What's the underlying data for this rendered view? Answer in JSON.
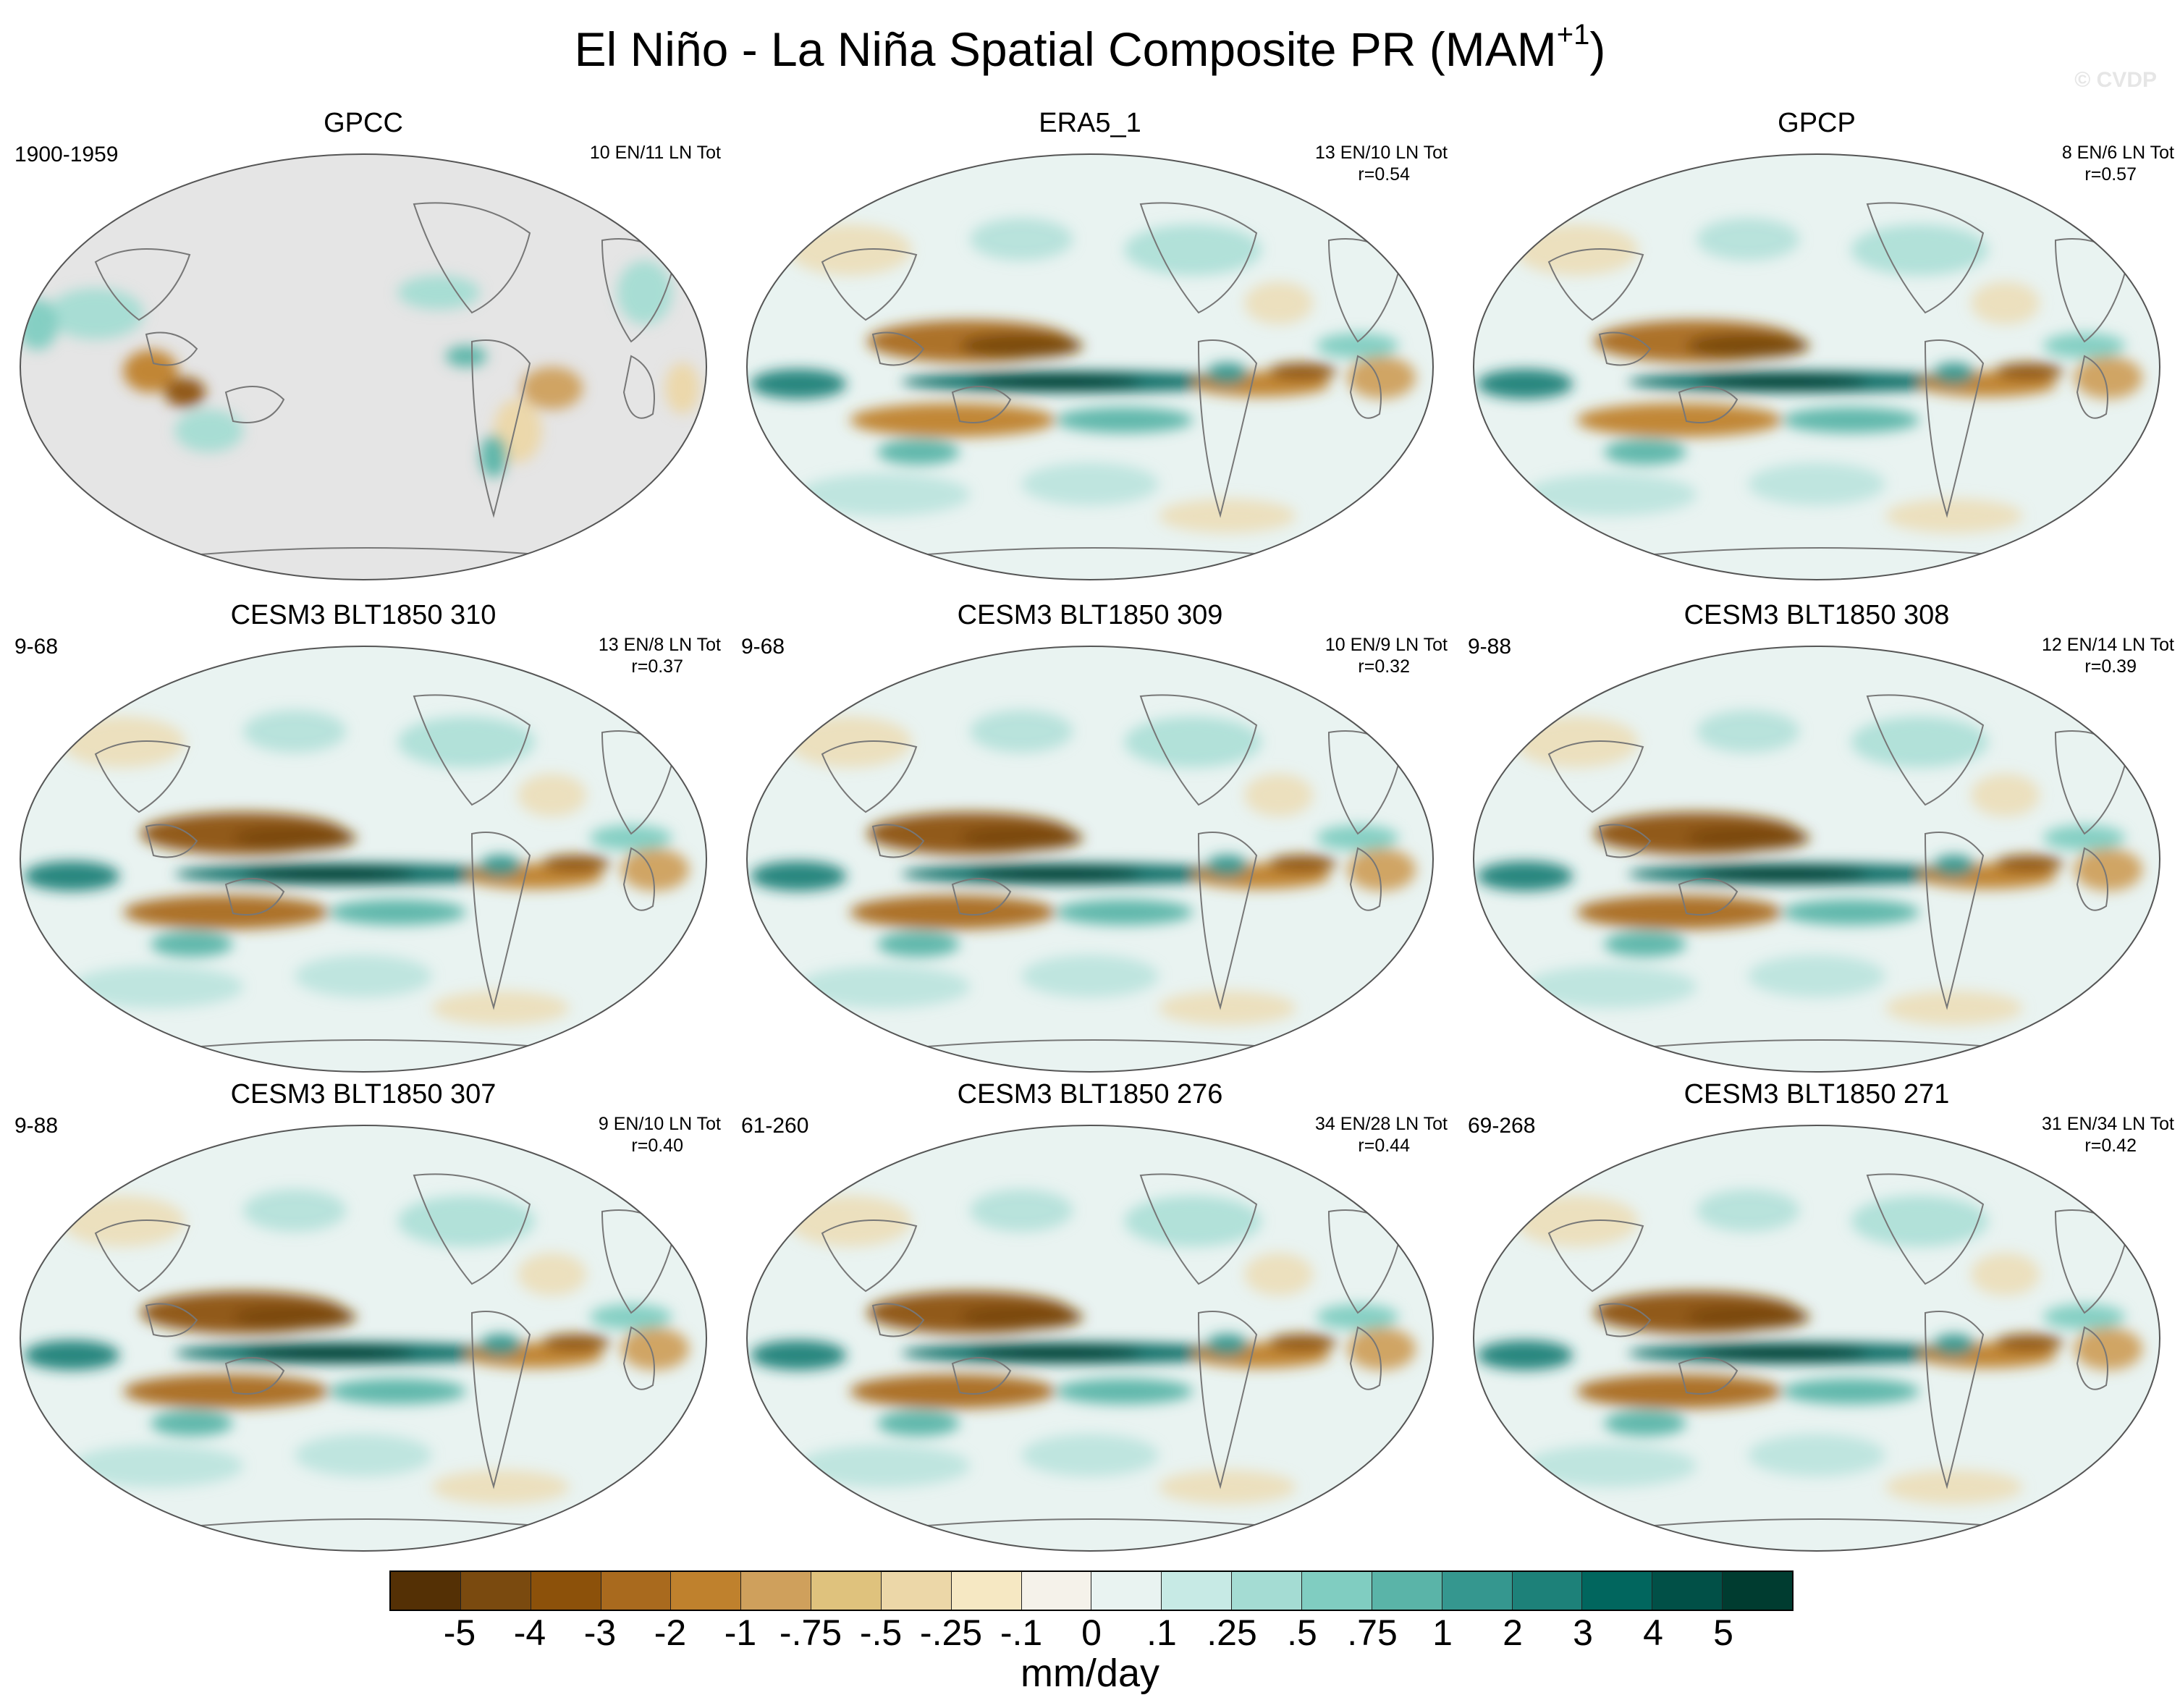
{
  "figure": {
    "title": "El Niño - La Niña Spatial Composite PR (MAM",
    "title_sup": "+1",
    "title_end": ")",
    "watermark": "© CVDP"
  },
  "panels": [
    {
      "title": "GPCC",
      "range": "1900-1959",
      "count": "10 EN/11 LN Tot",
      "corr": "",
      "style": "obs_gpcc"
    },
    {
      "title": "ERA5_1",
      "range": "",
      "count": "13 EN/10 LN Tot",
      "corr": "r=0.54",
      "style": "obs"
    },
    {
      "title": "GPCP",
      "range": "",
      "count": "8 EN/6 LN Tot",
      "corr": "r=0.57",
      "style": "obs"
    },
    {
      "title": "CESM3 BLT1850 310",
      "range": "9-68",
      "count": "13 EN/8 LN Tot",
      "corr": "r=0.37",
      "style": "model"
    },
    {
      "title": "CESM3 BLT1850 309",
      "range": "9-68",
      "count": "10 EN/9 LN Tot",
      "corr": "r=0.32",
      "style": "model"
    },
    {
      "title": "CESM3 BLT1850 308",
      "range": "9-88",
      "count": "12 EN/14 LN Tot",
      "corr": "r=0.39",
      "style": "model"
    },
    {
      "title": "CESM3 BLT1850 307",
      "range": "9-88",
      "count": "9 EN/10 LN Tot",
      "corr": "r=0.40",
      "style": "model"
    },
    {
      "title": "CESM3 BLT1850 276",
      "range": "61-260",
      "count": "34 EN/28 LN Tot",
      "corr": "r=0.44",
      "style": "model"
    },
    {
      "title": "CESM3 BLT1850 271",
      "range": "69-268",
      "count": "31 EN/34 LN Tot",
      "corr": "r=0.42",
      "style": "model"
    }
  ],
  "colorbar": {
    "unit": "mm/day",
    "labels": [
      "-5",
      "-4",
      "-3",
      "-2",
      "-1",
      "-.75",
      "-.5",
      "-.25",
      "-.1",
      "0",
      ".1",
      ".25",
      ".5",
      ".75",
      "1",
      "2",
      "3",
      "4",
      "5"
    ],
    "colors": [
      "#543005",
      "#7a4a0f",
      "#8c510a",
      "#a96a1e",
      "#bf812d",
      "#cfa05c",
      "#dfc27d",
      "#ecd7a8",
      "#f6e8c3",
      "#f5f2ea",
      "#e9f3f1",
      "#c7eae5",
      "#a4dcd3",
      "#80cdc1",
      "#5ab4a8",
      "#35978f",
      "#1d8179",
      "#01665e",
      "#015047",
      "#003c30"
    ]
  },
  "map_colors": {
    "ocean_missing": "#e5e5e5",
    "outline": "#555555",
    "coast": "#777777"
  }
}
